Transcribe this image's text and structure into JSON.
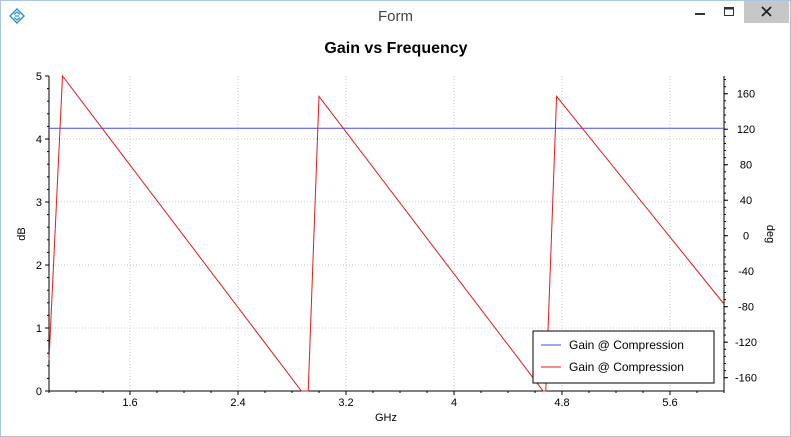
{
  "window": {
    "title": "Form",
    "icon": "app-diamond-icon",
    "buttons": [
      "minimize-icon",
      "maximize-icon",
      "close-icon"
    ]
  },
  "colors": {
    "gain_line": "#4a4ad8",
    "phase_line": "#e41a1c",
    "grid": "#c8c8c8",
    "close_button": "#c7c7c7"
  },
  "chart_data": {
    "type": "line",
    "title": "Gain vs Frequency",
    "xlabel": "GHz",
    "ylabel": "dB",
    "y2label": "deg",
    "xlim": [
      1.0,
      6.0
    ],
    "ylim": [
      0,
      5
    ],
    "y2lim": [
      -175,
      180
    ],
    "xticks": [
      1.6,
      2.4,
      3.2,
      4,
      4.8,
      5.6
    ],
    "xtick_labels": [
      "1.6",
      "2.4",
      "3.2",
      "4",
      "4.8",
      "5.6"
    ],
    "yticks": [
      0,
      1,
      2,
      3,
      4,
      5
    ],
    "ytick_labels": [
      "0",
      "1",
      "2",
      "3",
      "4",
      "5"
    ],
    "y2ticks": [
      -160,
      -120,
      -80,
      -40,
      0,
      40,
      80,
      120,
      160
    ],
    "y2tick_labels": [
      "-160",
      "-120",
      "-80",
      "-40",
      "0",
      "40",
      "80",
      "120",
      "160"
    ],
    "grid": true,
    "legend_position": "bottom-right",
    "series": [
      {
        "name": "Gain @ Compression",
        "axis": "left",
        "color": "#4a4ad8",
        "x": [
          1.0,
          6.0
        ],
        "y": [
          4.17,
          4.17
        ]
      },
      {
        "name": "Gain @ Compression",
        "axis": "right",
        "color": "#e41a1c",
        "x": [
          1.0,
          1.1,
          2.87,
          2.92,
          3.0,
          4.66,
          4.68,
          4.76,
          6.0
        ],
        "y": [
          -140,
          180,
          -175,
          -175,
          157,
          -175,
          -175,
          157,
          -77
        ]
      }
    ]
  }
}
